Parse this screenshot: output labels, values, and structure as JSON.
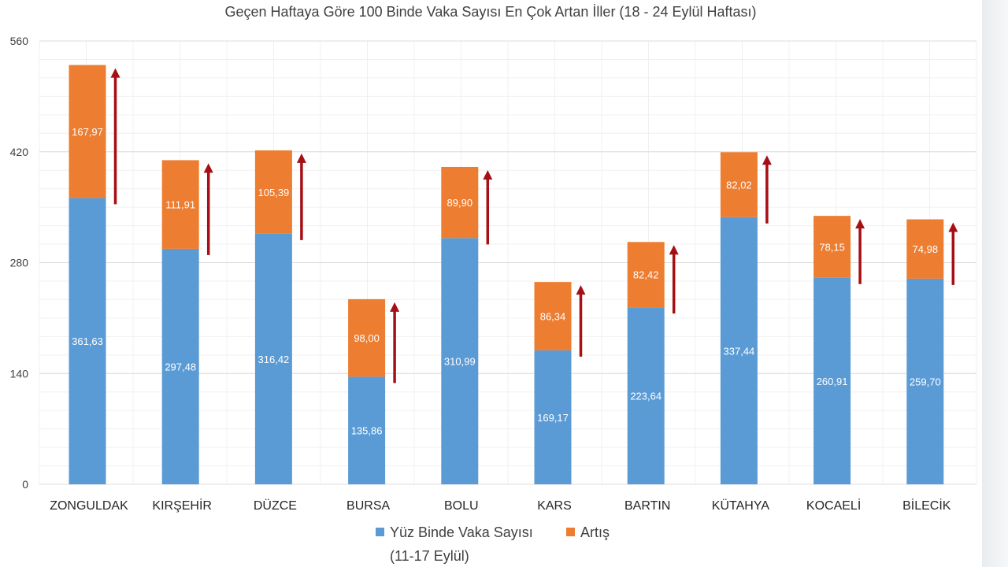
{
  "chart_data": {
    "type": "bar",
    "stacked": true,
    "title": "Geçen Haftaya Göre 100 Binde Vaka Sayısı En Çok Artan İller (18 - 24 Eylül Haftası)",
    "categories": [
      "ZONGULDAK",
      "KIRŞEHİR",
      "DÜZCE",
      "BURSA",
      "BOLU",
      "KARS",
      "BARTIN",
      "KÜTAHYA",
      "KOCAELİ",
      "BİLECİK"
    ],
    "series": [
      {
        "name": "Yüz Binde Vaka Sayısı",
        "name_line2": "(11-17 Eylül)",
        "color": "#5b9bd5",
        "values": [
          361.63,
          297.48,
          316.42,
          135.86,
          310.99,
          169.17,
          223.64,
          337.44,
          260.91,
          259.7
        ],
        "labels": [
          "361,63",
          "297,48",
          "316,42",
          "135,86",
          "310,99",
          "169,17",
          "223,64",
          "337,44",
          "260,91",
          "259,70"
        ]
      },
      {
        "name": "Artış",
        "color": "#ed7d31",
        "values": [
          167.97,
          111.91,
          105.39,
          98.0,
          89.9,
          86.34,
          82.42,
          82.02,
          78.15,
          74.98
        ],
        "labels": [
          "167,97",
          "111,91",
          "105,39",
          "98,00",
          "89,90",
          "86,34",
          "82,42",
          "82,02",
          "78,15",
          "74,98"
        ]
      }
    ],
    "yticks": [
      0,
      140,
      280,
      420,
      560
    ],
    "ytick_labels": [
      "0",
      "140",
      "280",
      "420",
      "560"
    ],
    "ylim": [
      0,
      560
    ],
    "grid": true,
    "legend_position": "bottom",
    "arrow_color": "#a50f15"
  }
}
